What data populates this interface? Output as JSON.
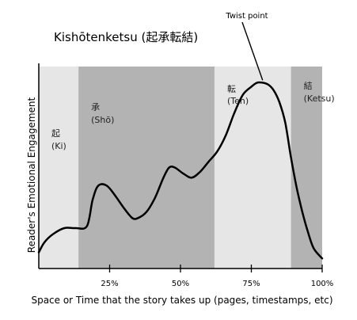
{
  "chart_data": {
    "type": "area",
    "title": "Kishōtenketsu (起承転結)",
    "xlabel": "Space or Time that the story takes up (pages, timestamps, etc)",
    "ylabel": "Reader's Emotional Engagement",
    "xlim": [
      0,
      100
    ],
    "ylim": [
      0,
      100
    ],
    "x_ticks": [
      {
        "value": 25,
        "label": "25%"
      },
      {
        "value": 50,
        "label": "50%"
      },
      {
        "value": 75,
        "label": "75%"
      },
      {
        "value": 100,
        "label": "100%"
      }
    ],
    "sections": [
      {
        "name": "起",
        "romaji": "(Ki)",
        "start": 0,
        "end": 14,
        "shade": "#e6e6e6"
      },
      {
        "name": "承",
        "romaji": "(Shō)",
        "start": 14,
        "end": 62,
        "shade": "#b3b3b3"
      },
      {
        "name": "転",
        "romaji": "(Ten)",
        "start": 62,
        "end": 89,
        "shade": "#e6e6e6"
      },
      {
        "name": "結",
        "romaji": "(Ketsu)",
        "start": 89,
        "end": 100,
        "shade": "#b3b3b3"
      }
    ],
    "series": [
      {
        "x": [
          0,
          2,
          5,
          9,
          13,
          17,
          19,
          21,
          24,
          27,
          30,
          33,
          35,
          38,
          41,
          44,
          46,
          48,
          51,
          54,
          57,
          60,
          63,
          66,
          69,
          72,
          75,
          77,
          79,
          81,
          83,
          85,
          87,
          89,
          91,
          93,
          95,
          97,
          100
        ],
        "y": [
          8,
          13,
          17,
          20,
          20,
          21,
          34,
          41,
          41,
          36,
          30,
          25,
          25,
          28,
          35,
          45,
          50,
          50,
          47,
          45,
          48,
          53,
          58,
          66,
          77,
          86,
          90,
          92,
          92,
          91,
          88,
          82,
          72,
          55,
          40,
          28,
          18,
          10,
          5
        ]
      }
    ],
    "annotations": [
      {
        "text": "Twist point",
        "x": 79,
        "y": 92
      }
    ],
    "grid": false,
    "colors": {
      "line": "#000000",
      "light_band": "#e6e6e6",
      "dark_band": "#b3b3b3"
    }
  }
}
